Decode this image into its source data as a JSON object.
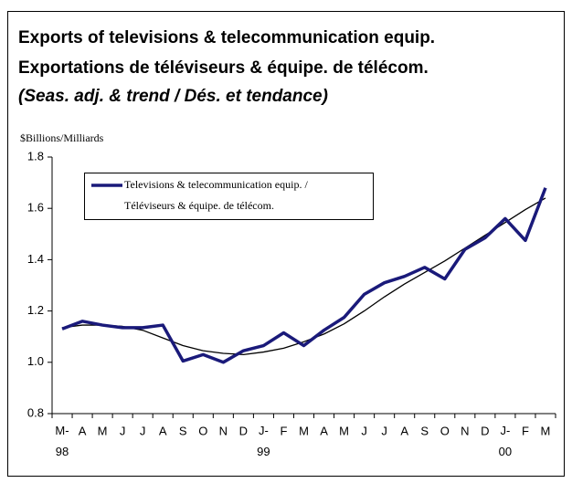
{
  "chart_data": {
    "type": "line",
    "title": "Exports of televisions & telecommunication equip.",
    "subtitle": "Exportations de téléviseurs & équipe. de télécom.",
    "note": "(Seas. adj. & trend / Dés. et tendance)",
    "y_label": "$Billions/Milliards",
    "categories": [
      "M-\n98",
      "A",
      "M",
      "J",
      "J",
      "A",
      "S",
      "O",
      "N",
      "D",
      "J-\n99",
      "F",
      "M",
      "A",
      "M",
      "J",
      "J",
      "A",
      "S",
      "O",
      "N",
      "D",
      "J-\n00",
      "F",
      "M"
    ],
    "series": [
      {
        "name": "Televisions & telecommunication equip. /\nTéléviseurs & équipe. de télécom.",
        "color": "#1a1a7a",
        "values": [
          1.13,
          1.16,
          1.145,
          1.135,
          1.135,
          1.145,
          1.005,
          1.03,
          1.0,
          1.045,
          1.065,
          1.115,
          1.065,
          1.125,
          1.175,
          1.265,
          1.31,
          1.335,
          1.37,
          1.325,
          1.44,
          1.485,
          1.56,
          1.475,
          1.68
        ]
      },
      {
        "color": "#000000",
        "values": [
          1.135,
          1.145,
          1.145,
          1.14,
          1.125,
          1.095,
          1.065,
          1.045,
          1.035,
          1.03,
          1.04,
          1.055,
          1.08,
          1.11,
          1.15,
          1.2,
          1.255,
          1.305,
          1.35,
          1.395,
          1.445,
          1.495,
          1.545,
          1.595,
          1.64
        ]
      }
    ],
    "ylim": [
      0.8,
      1.8
    ],
    "yticks": [
      0.8,
      {
        "value": 1,
        "label": "1.0"
      },
      1.2,
      1.4,
      1.6,
      1.8
    ],
    "grid": false
  }
}
